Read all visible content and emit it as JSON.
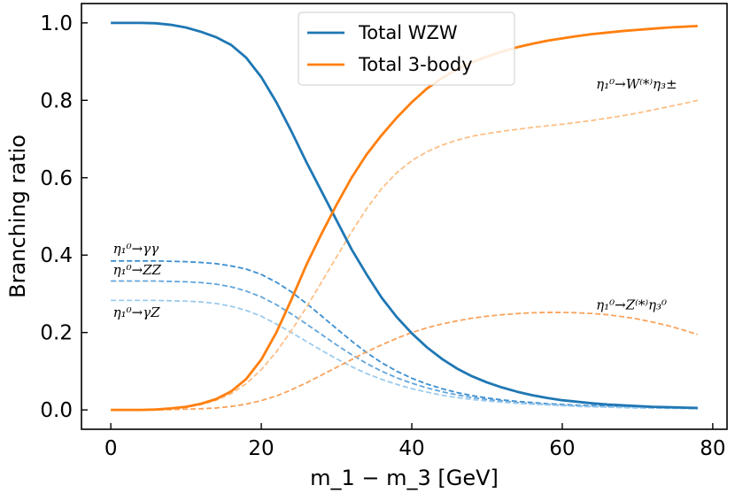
{
  "chart_data": {
    "type": "line",
    "xlabel": "m_1 − m_3 [GeV]",
    "ylabel": "Branching ratio",
    "xlim": [
      -3.9,
      81.9
    ],
    "ylim": [
      -0.05,
      1.05
    ],
    "xticks": [
      0,
      20,
      40,
      60,
      80
    ],
    "yticks": [
      0.0,
      0.2,
      0.4,
      0.6,
      0.8,
      1.0
    ],
    "x_tick_labels": [
      "0",
      "20",
      "40",
      "60",
      "80"
    ],
    "y_tick_labels": [
      "0.0",
      "0.2",
      "0.4",
      "0.6",
      "0.8",
      "1.0"
    ],
    "legend_position": "top-center",
    "x": [
      0,
      2,
      4,
      6,
      8,
      10,
      12,
      14,
      16,
      18,
      20,
      22,
      24,
      26,
      28,
      30,
      32,
      34,
      36,
      38,
      40,
      42,
      44,
      46,
      48,
      50,
      52,
      54,
      56,
      58,
      60,
      62,
      64,
      66,
      68,
      70,
      72,
      74,
      76,
      78
    ],
    "series": [
      {
        "name": "Total WZW",
        "color": "#1f77b4",
        "style": "solid",
        "in_legend": true,
        "values": [
          1.0,
          1.0,
          1.0,
          0.999,
          0.995,
          0.988,
          0.977,
          0.963,
          0.943,
          0.91,
          0.86,
          0.795,
          0.72,
          0.64,
          0.565,
          0.49,
          0.415,
          0.35,
          0.29,
          0.24,
          0.198,
          0.162,
          0.132,
          0.107,
          0.087,
          0.071,
          0.058,
          0.047,
          0.038,
          0.031,
          0.025,
          0.021,
          0.017,
          0.014,
          0.012,
          0.01,
          0.008,
          0.007,
          0.006,
          0.005
        ]
      },
      {
        "name": "Total 3-body",
        "color": "#ff7f0e",
        "style": "solid",
        "in_legend": true,
        "values": [
          0.0,
          0.0,
          0.0,
          0.001,
          0.004,
          0.008,
          0.016,
          0.028,
          0.048,
          0.08,
          0.13,
          0.2,
          0.285,
          0.375,
          0.455,
          0.53,
          0.6,
          0.66,
          0.71,
          0.755,
          0.795,
          0.83,
          0.857,
          0.88,
          0.898,
          0.913,
          0.926,
          0.937,
          0.946,
          0.954,
          0.96,
          0.966,
          0.971,
          0.975,
          0.979,
          0.982,
          0.985,
          0.988,
          0.99,
          0.992
        ]
      },
      {
        "name": "",
        "color": "#3b8ed0",
        "style": "dashed",
        "in_legend": false,
        "values": [
          0.385,
          0.385,
          0.385,
          0.385,
          0.384,
          0.383,
          0.381,
          0.378,
          0.372,
          0.364,
          0.35,
          0.33,
          0.305,
          0.275,
          0.243,
          0.21,
          0.178,
          0.148,
          0.122,
          0.1,
          0.082,
          0.067,
          0.055,
          0.045,
          0.037,
          0.031,
          0.026,
          0.022,
          0.019,
          0.016,
          0.014,
          0.012,
          0.011,
          0.01,
          0.009,
          0.008,
          0.007,
          0.006,
          0.005,
          0.005
        ]
      },
      {
        "name": "",
        "color": "#63a5db",
        "style": "dashed",
        "in_legend": false,
        "values": [
          0.333,
          0.333,
          0.333,
          0.333,
          0.332,
          0.331,
          0.329,
          0.325,
          0.318,
          0.307,
          0.292,
          0.272,
          0.248,
          0.222,
          0.195,
          0.168,
          0.143,
          0.12,
          0.1,
          0.083,
          0.069,
          0.057,
          0.047,
          0.039,
          0.032,
          0.027,
          0.023,
          0.019,
          0.016,
          0.014,
          0.012,
          0.01,
          0.009,
          0.008,
          0.007,
          0.006,
          0.005,
          0.005,
          0.004,
          0.004
        ]
      },
      {
        "name": "",
        "color": "#9ccbee",
        "style": "dashed",
        "in_legend": false,
        "values": [
          0.283,
          0.283,
          0.283,
          0.283,
          0.282,
          0.281,
          0.279,
          0.275,
          0.268,
          0.257,
          0.242,
          0.222,
          0.2,
          0.177,
          0.154,
          0.132,
          0.112,
          0.094,
          0.079,
          0.066,
          0.055,
          0.046,
          0.038,
          0.032,
          0.027,
          0.023,
          0.02,
          0.017,
          0.015,
          0.013,
          0.011,
          0.009,
          0.008,
          0.007,
          0.006,
          0.005,
          0.005,
          0.004,
          0.004,
          0.003
        ]
      },
      {
        "name": "",
        "color": "#fdbf86",
        "style": "dashed",
        "in_legend": false,
        "values": [
          0.0,
          0.0,
          0.0,
          0.001,
          0.003,
          0.007,
          0.014,
          0.025,
          0.042,
          0.068,
          0.104,
          0.15,
          0.205,
          0.265,
          0.33,
          0.395,
          0.46,
          0.52,
          0.572,
          0.613,
          0.644,
          0.667,
          0.684,
          0.697,
          0.707,
          0.714,
          0.72,
          0.725,
          0.73,
          0.734,
          0.738,
          0.743,
          0.748,
          0.754,
          0.76,
          0.767,
          0.775,
          0.783,
          0.791,
          0.8
        ]
      },
      {
        "name": "",
        "color": "#f9a35c",
        "style": "dashed",
        "in_legend": false,
        "values": [
          0.0,
          0.0,
          0.0,
          0.0,
          0.001,
          0.002,
          0.003,
          0.005,
          0.009,
          0.015,
          0.024,
          0.036,
          0.052,
          0.07,
          0.09,
          0.11,
          0.13,
          0.15,
          0.168,
          0.185,
          0.2,
          0.212,
          0.222,
          0.23,
          0.237,
          0.242,
          0.246,
          0.249,
          0.251,
          0.252,
          0.252,
          0.251,
          0.249,
          0.246,
          0.241,
          0.235,
          0.227,
          0.218,
          0.207,
          0.195
        ]
      }
    ],
    "legend": [
      "Total WZW",
      "Total 3-body"
    ],
    "annotations": [
      {
        "text": "η₁⁰→γγ",
        "x": 0.3,
        "y": 0.405
      },
      {
        "text": "η₁⁰→ZZ",
        "x": 0.3,
        "y": 0.35
      },
      {
        "text": "η₁⁰→γZ",
        "x": 0.3,
        "y": 0.24
      },
      {
        "text": "η₁⁰→W⁽*⁾η₃±",
        "x": 64.5,
        "y": 0.83
      },
      {
        "text": "η₁⁰→Z⁽*⁾η₃⁰",
        "x": 64.5,
        "y": 0.26
      }
    ]
  }
}
